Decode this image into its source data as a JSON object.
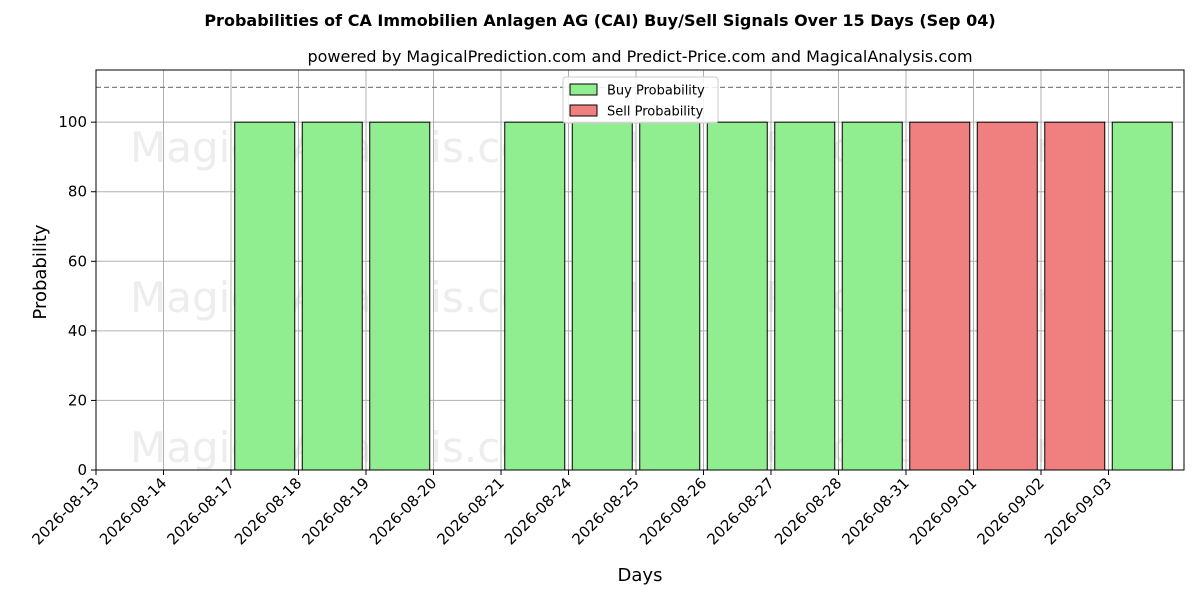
{
  "chart_data": {
    "type": "bar",
    "title": "Probabilities of CA Immobilien Anlagen AG (CAI) Buy/Sell Signals Over 15 Days (Sep 04)",
    "subtitle": "powered by MagicalPrediction.com and Predict-Price.com and MagicalAnalysis.com",
    "xlabel": "Days",
    "ylabel": "Probability",
    "ylim": [
      0,
      115
    ],
    "yticks": [
      0,
      20,
      40,
      60,
      80,
      100
    ],
    "reference_line": 110,
    "grid": true,
    "legend_position": "top-center",
    "categories": [
      "2026-08-13",
      "2026-08-14",
      "2026-08-17",
      "2026-08-18",
      "2026-08-19",
      "2026-08-20",
      "2026-08-21",
      "2026-08-24",
      "2026-08-25",
      "2026-08-26",
      "2026-08-27",
      "2026-08-28",
      "2026-08-31",
      "2026-09-01",
      "2026-09-02",
      "2026-09-03"
    ],
    "series": [
      {
        "name": "Buy Probability",
        "color": "#90ee90",
        "values": [
          0,
          0,
          100,
          100,
          100,
          0,
          100,
          100,
          100,
          100,
          100,
          100,
          0,
          0,
          0,
          100
        ]
      },
      {
        "name": "Sell Probability",
        "color": "#f08080",
        "values": [
          0,
          0,
          0,
          0,
          0,
          0,
          0,
          0,
          0,
          0,
          0,
          0,
          100,
          100,
          100,
          0
        ]
      }
    ]
  },
  "watermarks": [
    "MagicalAnalysis.com",
    "MagicalPrediction.com"
  ]
}
